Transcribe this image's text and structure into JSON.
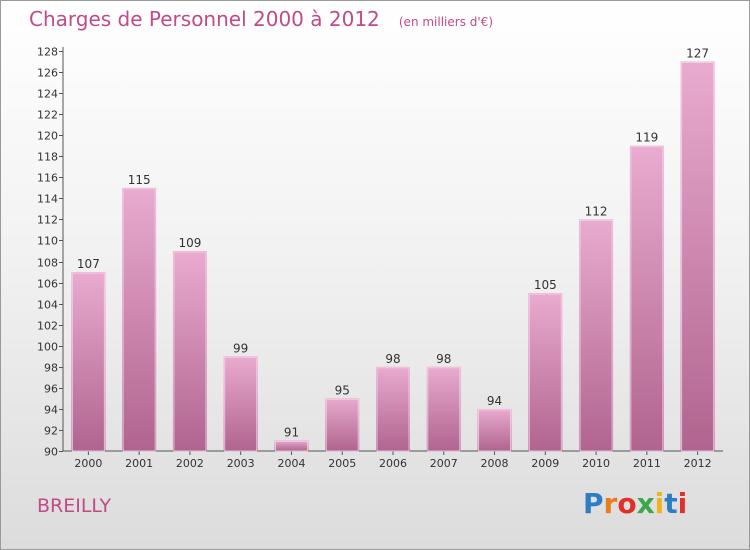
{
  "title": "Charges de Personnel 2000 à 2012",
  "subtitle": "(en milliers d'€)",
  "place": "BREILLY",
  "brand": {
    "text": "Proxiti",
    "letter_colors": [
      "#2d7ec4",
      "#e87d1e",
      "#e0302a",
      "#3aa84a",
      "#f2b21c",
      "#2d7ec4",
      "#e0302a"
    ]
  },
  "colors": {
    "bar_light": "#e9abcf",
    "bar_dark": "#b0648f",
    "title": "#c24a86",
    "label": "#333333"
  },
  "chart_data": {
    "type": "bar",
    "categories": [
      "2000",
      "2001",
      "2002",
      "2003",
      "2004",
      "2005",
      "2006",
      "2007",
      "2008",
      "2009",
      "2010",
      "2011",
      "2012"
    ],
    "values": [
      107,
      115,
      109,
      99,
      91,
      95,
      98,
      98,
      94,
      105,
      112,
      119,
      127
    ],
    "data_labels": [
      "107",
      "115",
      "109",
      "99",
      "91",
      "95",
      "98",
      "98",
      "94",
      "105",
      "112",
      "119",
      "127"
    ],
    "y_ticks": [
      "90",
      "92",
      "94",
      "96",
      "98",
      "100",
      "102",
      "104",
      "106",
      "108",
      "110",
      "112",
      "114",
      "116",
      "118",
      "120",
      "122",
      "124",
      "126",
      "128"
    ],
    "ylim": [
      90,
      128
    ],
    "grid": false,
    "legend": "none"
  }
}
